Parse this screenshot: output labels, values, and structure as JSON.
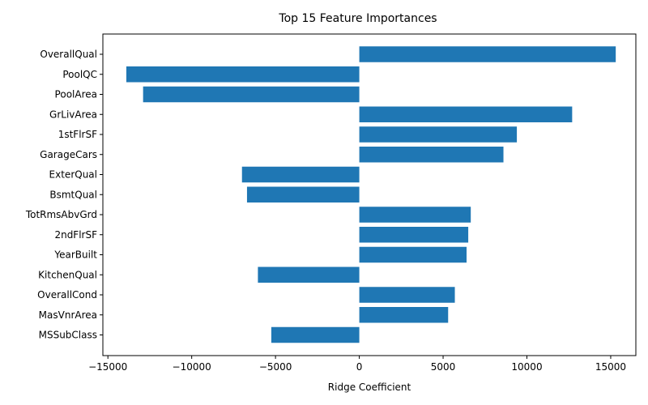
{
  "chart_data": {
    "type": "bar",
    "orientation": "horizontal",
    "title": "Top 15 Feature Importances",
    "xlabel": "Ridge Coefficient",
    "ylabel": "",
    "xlim": [
      -15300,
      16500
    ],
    "xticks": [
      -15000,
      -10000,
      -5000,
      0,
      5000,
      10000,
      15000
    ],
    "xtick_labels": [
      "−15000",
      "−10000",
      "−5000",
      "0",
      "5000",
      "10000",
      "15000"
    ],
    "categories": [
      "OverallQual",
      "PoolQC",
      "PoolArea",
      "GrLivArea",
      "1stFlrSF",
      "GarageCars",
      "ExterQual",
      "BsmtQual",
      "TotRmsAbvGrd",
      "2ndFlrSF",
      "YearBuilt",
      "KitchenQual",
      "OverallCond",
      "MasVnrArea",
      "MSSubClass"
    ],
    "values": [
      15300,
      -13900,
      -12900,
      12700,
      9400,
      8600,
      -7000,
      -6700,
      6650,
      6500,
      6400,
      -6050,
      5700,
      5300,
      -5250
    ],
    "color": "#1f77b4",
    "grid": false,
    "legend": "none"
  }
}
